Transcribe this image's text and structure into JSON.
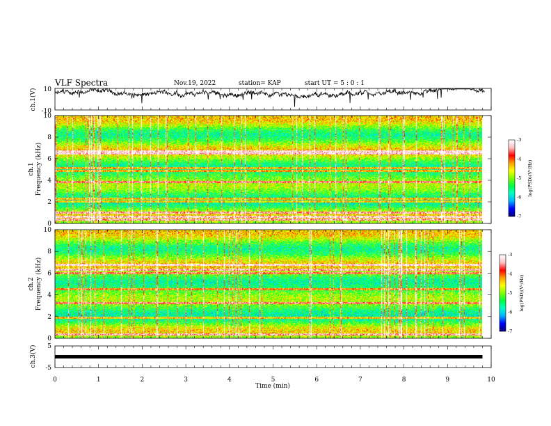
{
  "header": {
    "title": "VLF Spectra",
    "date": "Nov.19, 2022",
    "station": "station= KAP",
    "start": "start  UT  =  5 : 0  : 1"
  },
  "chart_data": [
    {
      "type": "line",
      "name": "ch1-waveform",
      "ylabel": "ch.1(V)",
      "ylim": [
        -10,
        10
      ],
      "yticks": [
        "10",
        "-10"
      ],
      "xlim": [
        0,
        10
      ],
      "description_values": {
        "x_range_min": [
          0,
          9.85
        ],
        "baseline_V": 5,
        "noise_V": 3
      }
    },
    {
      "type": "heatmap",
      "name": "ch1-spectrogram",
      "ylabel": "ch.1\nFrequency (kHz)",
      "ylabel_line1": "ch.1",
      "ylabel_line2": "Frequency (kHz)",
      "ylim": [
        0,
        10
      ],
      "yticks": [
        "0",
        "2",
        "4",
        "6",
        "8",
        "10"
      ],
      "xlim": [
        0,
        9.85
      ],
      "strong_lines_kHz": [
        0.3,
        0.6,
        1.0,
        2.0,
        2.3,
        3.8,
        4.9,
        5.1,
        6.5,
        6.7
      ],
      "colorbar": {
        "label": "log(PSD)(V²/Hz)",
        "min": -7,
        "max": -3,
        "ticks": [
          "-3",
          "-4",
          "-5",
          "-6",
          "-7"
        ]
      }
    },
    {
      "type": "heatmap",
      "name": "ch2-spectrogram",
      "ylabel_line1": "ch.2",
      "ylabel_line2": "Frequency (kHz)",
      "ylim": [
        0,
        10
      ],
      "yticks": [
        "0",
        "2",
        "4",
        "6",
        "8",
        "10"
      ],
      "xlim": [
        0,
        9.85
      ],
      "strong_lines_kHz": [
        0.3,
        1.9,
        3.2,
        4.5,
        6.0,
        6.3,
        6.8
      ],
      "colorbar": {
        "label": "log(PSD)(V²/Hz)",
        "min": -7,
        "max": -3,
        "ticks": [
          "-3",
          "-4",
          "-5",
          "-6",
          "-7"
        ]
      }
    },
    {
      "type": "line",
      "name": "ch3-waveform",
      "ylabel": "ch.3(V)",
      "ylim": [
        -5,
        5
      ],
      "yticks": [
        "5",
        "-5"
      ],
      "xlim": [
        0,
        10
      ],
      "level_V": [
        -0.8,
        0.8
      ]
    }
  ],
  "xaxis": {
    "label": "Time  (min)",
    "ticks": [
      "0",
      "1",
      "2",
      "3",
      "4",
      "5",
      "6",
      "7",
      "8",
      "9",
      "10"
    ],
    "range": [
      0,
      10
    ]
  },
  "colors": {
    "scale": [
      "#000080",
      "#0000ff",
      "#00b4ff",
      "#00ffc8",
      "#00ff40",
      "#80ff00",
      "#ffff00",
      "#ffa000",
      "#ff0000",
      "#ffc0c0",
      "#ffffff"
    ]
  }
}
